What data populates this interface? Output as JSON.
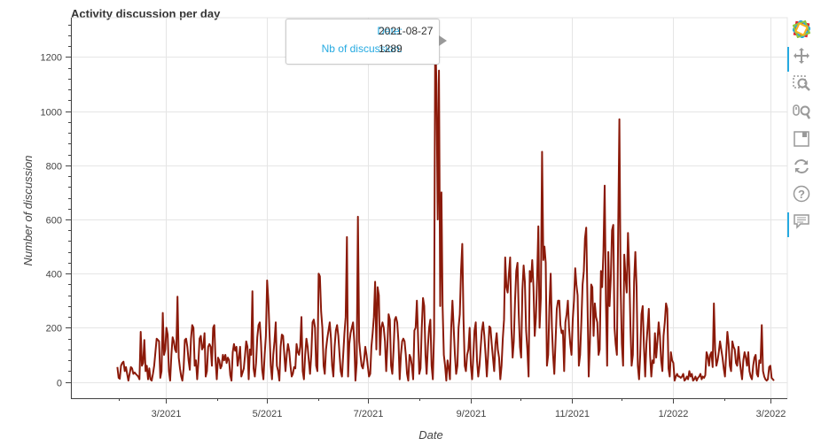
{
  "chart_data": {
    "type": "line",
    "title": "Activity discussion per day",
    "xlabel": "Date",
    "ylabel": "Number of discussion",
    "x_ticks": [
      "3/2021",
      "5/2021",
      "7/2021",
      "9/2021",
      "11/2021",
      "1/2022",
      "3/2022"
    ],
    "y_ticks": [
      0,
      200,
      400,
      600,
      800,
      1000,
      1200
    ],
    "xlim": [
      "2021-01-03",
      "2022-03-11"
    ],
    "ylim": [
      -60,
      1345
    ],
    "line_color": "#8b1a0a",
    "grid": true,
    "start_date": "2021-01-31",
    "end_date": "2022-03-03",
    "values": [
      55,
      15,
      12,
      60,
      70,
      75,
      40,
      55,
      30,
      5,
      30,
      55,
      50,
      30,
      35,
      30,
      25,
      20,
      10,
      185,
      60,
      70,
      155,
      40,
      60,
      10,
      50,
      10,
      5,
      30,
      60,
      110,
      160,
      155,
      150,
      15,
      40,
      255,
      100,
      120,
      200,
      175,
      40,
      5,
      100,
      165,
      150,
      120,
      110,
      315,
      90,
      50,
      20,
      5,
      50,
      155,
      160,
      130,
      80,
      45,
      160,
      210,
      200,
      60,
      80,
      10,
      70,
      160,
      170,
      120,
      130,
      180,
      20,
      40,
      130,
      140,
      130,
      60,
      200,
      210,
      80,
      10,
      90,
      80,
      50,
      60,
      100,
      80,
      100,
      70,
      90,
      80,
      25,
      5,
      110,
      140,
      115,
      130,
      60,
      90,
      130,
      20,
      35,
      50,
      100,
      150,
      130,
      10,
      120,
      100,
      335,
      50,
      20,
      70,
      165,
      210,
      220,
      150,
      45,
      10,
      100,
      170,
      375,
      300,
      180,
      60,
      10,
      100,
      150,
      220,
      60,
      40,
      5,
      130,
      175,
      170,
      100,
      40,
      100,
      140,
      115,
      60,
      20,
      30,
      55,
      50,
      140,
      110,
      100,
      130,
      240,
      40,
      10,
      100,
      160,
      130,
      80,
      30,
      100,
      220,
      230,
      200,
      60,
      40,
      400,
      390,
      260,
      200,
      60,
      30,
      120,
      160,
      190,
      220,
      160,
      60,
      20,
      130,
      190,
      210,
      170,
      100,
      40,
      20,
      100,
      180,
      240,
      535,
      20,
      140,
      180,
      200,
      220,
      150,
      5,
      70,
      610,
      150,
      100,
      60,
      50,
      80,
      130,
      100,
      60,
      20,
      30,
      130,
      180,
      240,
      370,
      120,
      350,
      320,
      100,
      200,
      220,
      200,
      150,
      40,
      130,
      250,
      230,
      60,
      30,
      120,
      230,
      240,
      220,
      150,
      10,
      100,
      150,
      160,
      150,
      100,
      30,
      5,
      100,
      90,
      60,
      10,
      190,
      200,
      300,
      160,
      30,
      50,
      200,
      310,
      280,
      100,
      30,
      130,
      200,
      230,
      60,
      10,
      180,
      1280,
      1100,
      600,
      1150,
      280,
      700,
      280,
      100,
      60,
      5,
      80,
      50,
      10,
      200,
      300,
      200,
      100,
      30,
      60,
      200,
      250,
      410,
      510,
      230,
      60,
      40,
      100,
      120,
      200,
      60,
      10,
      100,
      190,
      220,
      80,
      20,
      60,
      130,
      190,
      220,
      170,
      100,
      20,
      100,
      205,
      200,
      140,
      90,
      40,
      140,
      180,
      120,
      90,
      10,
      60,
      160,
      230,
      460,
      350,
      330,
      400,
      460,
      200,
      90,
      150,
      300,
      410,
      440,
      250,
      130,
      90,
      340,
      430,
      370,
      190,
      120,
      20,
      410,
      370,
      450,
      350,
      170,
      240,
      380,
      575,
      200,
      310,
      850,
      450,
      500,
      440,
      60,
      100,
      280,
      400,
      200,
      100,
      30,
      150,
      270,
      300,
      300,
      210,
      180,
      190,
      40,
      220,
      250,
      300,
      200,
      140,
      100,
      230,
      300,
      420,
      360,
      320,
      60,
      100,
      220,
      360,
      410,
      530,
      570,
      300,
      20,
      150,
      360,
      350,
      170,
      290,
      240,
      220,
      100,
      120,
      410,
      350,
      480,
      725,
      300,
      60,
      480,
      280,
      380,
      560,
      580,
      200,
      140,
      100,
      550,
      970,
      350,
      140,
      60,
      470,
      390,
      330,
      550,
      420,
      200,
      60,
      100,
      370,
      480,
      350,
      60,
      10,
      100,
      250,
      280,
      130,
      20,
      140,
      200,
      270,
      100,
      20,
      80,
      70,
      180,
      90,
      150,
      220,
      170,
      80,
      40,
      170,
      220,
      290,
      270,
      50,
      20,
      110,
      80,
      70,
      5,
      20,
      30,
      20,
      20,
      15,
      20,
      30,
      5,
      10,
      20,
      10,
      40,
      20,
      30,
      5,
      10,
      20,
      5,
      15,
      20,
      30,
      10,
      20,
      15,
      25,
      110,
      95,
      60,
      100,
      110,
      55,
      290,
      120,
      60,
      80,
      110,
      150,
      120,
      90,
      50,
      20,
      100,
      185,
      140,
      60,
      40,
      150,
      130,
      120,
      70,
      60,
      130,
      80,
      40,
      10,
      80,
      110,
      90,
      60,
      110,
      40,
      20,
      10,
      60,
      90,
      100,
      30,
      20,
      80,
      70,
      210,
      40,
      20,
      10,
      5,
      10,
      55,
      60,
      15,
      10,
      5
    ]
  },
  "tooltip": {
    "date_label": "Date:",
    "date_value": "2021-08-27",
    "count_label": "Nb of discussion:",
    "count_value": "1289"
  },
  "toolbar": {
    "tools": [
      "bokeh-logo-icon",
      "pan-icon",
      "box-zoom-icon",
      "wheel-zoom-icon",
      "save-icon",
      "reset-icon",
      "help-icon",
      "hover-icon"
    ]
  }
}
